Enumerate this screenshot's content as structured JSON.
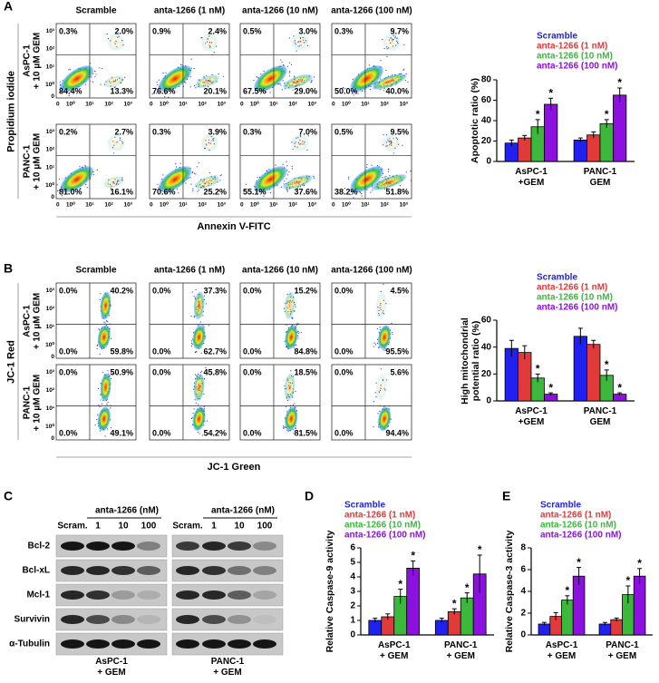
{
  "panel_labels": [
    "A",
    "B",
    "C",
    "D",
    "E"
  ],
  "flow_A": {
    "columns": [
      "Scramble",
      "anta-1266 (1 nM)",
      "anta-1266 (10 nM)",
      "anta-1266 (100 nM)"
    ],
    "y_title": "Propidium iodide",
    "x_title": "Annexin V-FITC",
    "axis_ticks": [
      "0",
      "10⁰",
      "10¹",
      "10²",
      "10³"
    ],
    "rows": [
      {
        "label": [
          "AsPC-1",
          "+ 10 μM GEM"
        ],
        "quadrants": [
          [
            "0.3%",
            "2.0%",
            "84.4%",
            "13.3%"
          ],
          [
            "0.9%",
            "2.4%",
            "76.6%",
            "20.1%"
          ],
          [
            "0.5%",
            "3.0%",
            "67.5%",
            "29.0%"
          ],
          [
            "0.3%",
            "9.7%",
            "50.0%",
            "40.0%"
          ]
        ]
      },
      {
        "label": [
          "PANC-1",
          "+ 10 μM GEM"
        ],
        "quadrants": [
          [
            "0.2%",
            "2.7%",
            "81.0%",
            "16.1%"
          ],
          [
            "0.3%",
            "3.9%",
            "70.6%",
            "25.2%"
          ],
          [
            "0.3%",
            "7.0%",
            "55.1%",
            "37.6%"
          ],
          [
            "0.5%",
            "9.5%",
            "38.2%",
            "51.8%"
          ]
        ]
      }
    ]
  },
  "flow_B": {
    "columns": [
      "Scramble",
      "anta-1266 (1 nM)",
      "anta-1266 (10 nM)",
      "anta-1266 (100 nM)"
    ],
    "y_title": "JC-1 Red",
    "x_title": "JC-1 Green",
    "axis_ticks": [
      "0",
      "10⁰",
      "10¹",
      "10²",
      "10³"
    ],
    "rows": [
      {
        "label": [
          "AsPC-1",
          "+ 10 μM GEM"
        ],
        "quadrants": [
          [
            "0.0%",
            "40.2%",
            "0.0%",
            "59.8%"
          ],
          [
            "0.0%",
            "37.3%",
            "0.0%",
            "62.7%"
          ],
          [
            "0.0%",
            "15.2%",
            "0.0%",
            "84.8%"
          ],
          [
            "0.0%",
            "4.5%",
            "0.0%",
            "95.5%"
          ]
        ]
      },
      {
        "label": [
          "PANC-1",
          "+ 10 μM GEM"
        ],
        "quadrants": [
          [
            "0.0%",
            "50.9%",
            "0.0%",
            "49.1%"
          ],
          [
            "0.0%",
            "45.8%",
            "0.0%",
            "54.2%"
          ],
          [
            "0.0%",
            "18.5%",
            "0.0%",
            "81.5%"
          ],
          [
            "0.0%",
            "5.6%",
            "0.0%",
            "94.4%"
          ]
        ]
      }
    ]
  },
  "western_blot": {
    "treatment_header": "anta-1266 (nM)",
    "lanes": [
      "Scram.",
      "1",
      "10",
      "100"
    ],
    "proteins": [
      "Bcl-2",
      "Bcl-xL",
      "Mcl-1",
      "Survivin",
      "α-Tubulin"
    ],
    "cell_lines": [
      "AsPC-1\n+ GEM",
      "PANC-1\n+ GEM"
    ]
  },
  "chart_data": [
    {
      "type": "bar",
      "y_label": "Apoptotic ratio (%)",
      "categories": [
        "AsPC-1\n+GEM",
        "PANC-1\nGEM"
      ],
      "ylim": [
        0,
        80
      ],
      "yticks": [
        0,
        20,
        40,
        60,
        80
      ],
      "series": [
        {
          "name": "Scramble",
          "color": "#2020f0",
          "values": [
            18,
            21
          ],
          "errors": [
            3,
            2
          ],
          "labels": [
            null,
            null
          ]
        },
        {
          "name": "anta-1266 (1 nM)",
          "color": "#e03a3a",
          "values": [
            23,
            26
          ],
          "errors": [
            2.5,
            3
          ],
          "labels": [
            null,
            null
          ]
        },
        {
          "name": "anta-1266 (10 nM)",
          "color": "#3cb83c",
          "values": [
            34,
            37
          ],
          "errors": [
            7,
            4
          ],
          "labels": [
            "*",
            "*"
          ]
        },
        {
          "name": "anta-1266 (100 nM)",
          "color": "#8c10e0",
          "values": [
            56,
            65
          ],
          "errors": [
            6,
            7
          ],
          "labels": [
            "*",
            "*"
          ]
        }
      ]
    },
    {
      "type": "bar",
      "y_label": "High mitochondrial\npotential ratio (%)",
      "categories": [
        "AsPC-1\n+GEM",
        "PANC-1\nGEM"
      ],
      "ylim": [
        0,
        60
      ],
      "yticks": [
        0,
        20,
        40,
        60
      ],
      "series": [
        {
          "name": "Scramble",
          "color": "#2020f0",
          "values": [
            39,
            48
          ],
          "errors": [
            6,
            6
          ],
          "labels": [
            null,
            null
          ]
        },
        {
          "name": "anta-1266 (1 nM)",
          "color": "#e03a3a",
          "values": [
            36,
            42
          ],
          "errors": [
            5,
            3
          ],
          "labels": [
            null,
            null
          ]
        },
        {
          "name": "anta-1266 (10 nM)",
          "color": "#3cb83c",
          "values": [
            17,
            19
          ],
          "errors": [
            3,
            4
          ],
          "labels": [
            "*",
            "*"
          ]
        },
        {
          "name": "anta-1266 (100 nM)",
          "color": "#8c10e0",
          "values": [
            5,
            5
          ],
          "errors": [
            1,
            1
          ],
          "labels": [
            "*",
            "*"
          ]
        }
      ]
    },
    {
      "type": "bar",
      "y_label": "Relative Caspase-9 activity",
      "categories": [
        "AsPC-1\n+ GEM",
        "PANC-1\n+ GEM"
      ],
      "ylim": [
        0,
        6
      ],
      "yticks": [
        0,
        1,
        2,
        3,
        4,
        5,
        6
      ],
      "series": [
        {
          "name": "Scramble",
          "color": "#2020f0",
          "values": [
            1.0,
            1.0
          ],
          "errors": [
            0.15,
            0.15
          ],
          "labels": [
            null,
            null
          ]
        },
        {
          "name": "anta-1266 (1 nM)",
          "color": "#e03a3a",
          "values": [
            1.25,
            1.6
          ],
          "errors": [
            0.2,
            0.2
          ],
          "labels": [
            null,
            "*"
          ]
        },
        {
          "name": "anta-1266 (10 nM)",
          "color": "#3cb83c",
          "values": [
            2.65,
            2.55
          ],
          "errors": [
            0.5,
            0.35
          ],
          "labels": [
            "*",
            "*"
          ]
        },
        {
          "name": "anta-1266 (100 nM)",
          "color": "#8c10e0",
          "values": [
            4.6,
            4.2
          ],
          "errors": [
            0.5,
            1.3
          ],
          "labels": [
            "*",
            "*"
          ]
        }
      ]
    },
    {
      "type": "bar",
      "y_label": "Relative Caspase-3 activity",
      "categories": [
        "AsPC-1\n+ GEM",
        "PANC-1\n+ GEM"
      ],
      "ylim": [
        0,
        8
      ],
      "yticks": [
        0,
        2,
        4,
        6,
        8
      ],
      "series": [
        {
          "name": "Scramble",
          "color": "#2020f0",
          "values": [
            1.0,
            1.0
          ],
          "errors": [
            0.15,
            0.15
          ],
          "labels": [
            null,
            null
          ]
        },
        {
          "name": "anta-1266 (1 nM)",
          "color": "#e03a3a",
          "values": [
            1.7,
            1.4
          ],
          "errors": [
            0.35,
            0.15
          ],
          "labels": [
            null,
            null
          ]
        },
        {
          "name": "anta-1266 (10 nM)",
          "color": "#3cb83c",
          "values": [
            3.2,
            3.7
          ],
          "errors": [
            0.4,
            0.8
          ],
          "labels": [
            "*",
            "*"
          ]
        },
        {
          "name": "anta-1266 (100 nM)",
          "color": "#8c10e0",
          "values": [
            5.4,
            5.4
          ],
          "errors": [
            0.8,
            0.7
          ],
          "labels": [
            "*",
            "*"
          ]
        }
      ]
    }
  ]
}
